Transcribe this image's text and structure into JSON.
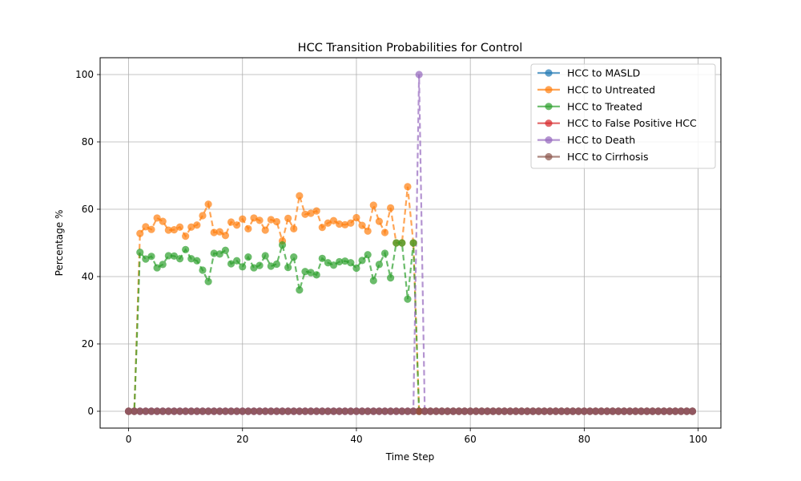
{
  "chart_data": {
    "type": "line",
    "title": "HCC Transition Probabilities for Control",
    "xlabel": "Time Step",
    "ylabel": "Percentage %",
    "xlim": [
      -5,
      104
    ],
    "ylim": [
      -5,
      105
    ],
    "xticks": [
      0,
      20,
      40,
      60,
      80,
      100
    ],
    "yticks": [
      0,
      20,
      40,
      60,
      80,
      100
    ],
    "grid": true,
    "legend_position": "top-right",
    "x": [
      0,
      1,
      2,
      3,
      4,
      5,
      6,
      7,
      8,
      9,
      10,
      11,
      12,
      13,
      14,
      15,
      16,
      17,
      18,
      19,
      20,
      21,
      22,
      23,
      24,
      25,
      26,
      27,
      28,
      29,
      30,
      31,
      32,
      33,
      34,
      35,
      36,
      37,
      38,
      39,
      40,
      41,
      42,
      43,
      44,
      45,
      46,
      47,
      48,
      49,
      50,
      51,
      52,
      53,
      54,
      55,
      56,
      57,
      58,
      59,
      60,
      61,
      62,
      63,
      64,
      65,
      66,
      67,
      68,
      69,
      70,
      71,
      72,
      73,
      74,
      75,
      76,
      77,
      78,
      79,
      80,
      81,
      82,
      83,
      84,
      85,
      86,
      87,
      88,
      89,
      90,
      91,
      92,
      93,
      94,
      95,
      96,
      97,
      98,
      99
    ],
    "series": [
      {
        "name": "HCC to MASLD",
        "color": "#1f77b4",
        "values": [
          0,
          0,
          0,
          0,
          0,
          0,
          0,
          0,
          0,
          0,
          0,
          0,
          0,
          0,
          0,
          0,
          0,
          0,
          0,
          0,
          0,
          0,
          0,
          0,
          0,
          0,
          0,
          0,
          0,
          0,
          0,
          0,
          0,
          0,
          0,
          0,
          0,
          0,
          0,
          0,
          0,
          0,
          0,
          0,
          0,
          0,
          0,
          0,
          0,
          0,
          0,
          0,
          0,
          0,
          0,
          0,
          0,
          0,
          0,
          0,
          0,
          0,
          0,
          0,
          0,
          0,
          0,
          0,
          0,
          0,
          0,
          0,
          0,
          0,
          0,
          0,
          0,
          0,
          0,
          0,
          0,
          0,
          0,
          0,
          0,
          0,
          0,
          0,
          0,
          0,
          0,
          0,
          0,
          0,
          0,
          0,
          0,
          0,
          0,
          0
        ]
      },
      {
        "name": "HCC to Untreated",
        "color": "#ff7f0e",
        "values": [
          0,
          0,
          52.8,
          54.8,
          54.0,
          57.4,
          56.4,
          53.8,
          53.9,
          54.7,
          52.0,
          54.7,
          55.3,
          58.1,
          61.5,
          53.1,
          53.3,
          52.2,
          56.2,
          55.3,
          57.1,
          54.2,
          57.4,
          56.7,
          53.8,
          56.9,
          56.3,
          50.6,
          57.3,
          54.2,
          64.0,
          58.5,
          58.8,
          59.5,
          54.6,
          55.9,
          56.6,
          55.6,
          55.4,
          55.9,
          57.5,
          55.2,
          53.5,
          61.2,
          56.4,
          53.1,
          60.4,
          50.0,
          50.0,
          66.7,
          50.0,
          0,
          0,
          0,
          0,
          0,
          0,
          0,
          0,
          0,
          0,
          0,
          0,
          0,
          0,
          0,
          0,
          0,
          0,
          0,
          0,
          0,
          0,
          0,
          0,
          0,
          0,
          0,
          0,
          0,
          0,
          0,
          0,
          0,
          0,
          0,
          0,
          0,
          0,
          0,
          0,
          0,
          0,
          0,
          0,
          0,
          0,
          0,
          0,
          0
        ]
      },
      {
        "name": "HCC to Treated",
        "color": "#2ca02c",
        "values": [
          0,
          0,
          47.2,
          45.2,
          46.0,
          42.6,
          43.6,
          46.2,
          46.1,
          45.3,
          48.0,
          45.3,
          44.7,
          41.9,
          38.5,
          46.9,
          46.7,
          47.8,
          43.8,
          44.7,
          42.9,
          45.8,
          42.6,
          43.3,
          46.2,
          43.1,
          43.7,
          49.4,
          42.7,
          45.8,
          36.0,
          41.5,
          41.2,
          40.5,
          45.4,
          44.1,
          43.4,
          44.4,
          44.6,
          44.1,
          42.5,
          44.8,
          46.5,
          38.8,
          43.6,
          46.9,
          39.6,
          50.0,
          50.0,
          33.3,
          50.0,
          0,
          0,
          0,
          0,
          0,
          0,
          0,
          0,
          0,
          0,
          0,
          0,
          0,
          0,
          0,
          0,
          0,
          0,
          0,
          0,
          0,
          0,
          0,
          0,
          0,
          0,
          0,
          0,
          0,
          0,
          0,
          0,
          0,
          0,
          0,
          0,
          0,
          0,
          0,
          0,
          0,
          0,
          0,
          0,
          0,
          0,
          0,
          0,
          0
        ]
      },
      {
        "name": "HCC to False Positive HCC",
        "color": "#d62728",
        "values": [
          0,
          0,
          0,
          0,
          0,
          0,
          0,
          0,
          0,
          0,
          0,
          0,
          0,
          0,
          0,
          0,
          0,
          0,
          0,
          0,
          0,
          0,
          0,
          0,
          0,
          0,
          0,
          0,
          0,
          0,
          0,
          0,
          0,
          0,
          0,
          0,
          0,
          0,
          0,
          0,
          0,
          0,
          0,
          0,
          0,
          0,
          0,
          0,
          0,
          0,
          0,
          0,
          0,
          0,
          0,
          0,
          0,
          0,
          0,
          0,
          0,
          0,
          0,
          0,
          0,
          0,
          0,
          0,
          0,
          0,
          0,
          0,
          0,
          0,
          0,
          0,
          0,
          0,
          0,
          0,
          0,
          0,
          0,
          0,
          0,
          0,
          0,
          0,
          0,
          0,
          0,
          0,
          0,
          0,
          0,
          0,
          0,
          0,
          0,
          0
        ]
      },
      {
        "name": "HCC to Death",
        "color": "#9467bd",
        "values": [
          0,
          0,
          0,
          0,
          0,
          0,
          0,
          0,
          0,
          0,
          0,
          0,
          0,
          0,
          0,
          0,
          0,
          0,
          0,
          0,
          0,
          0,
          0,
          0,
          0,
          0,
          0,
          0,
          0,
          0,
          0,
          0,
          0,
          0,
          0,
          0,
          0,
          0,
          0,
          0,
          0,
          0,
          0,
          0,
          0,
          0,
          0,
          0,
          0,
          0,
          0,
          100,
          0,
          0,
          0,
          0,
          0,
          0,
          0,
          0,
          0,
          0,
          0,
          0,
          0,
          0,
          0,
          0,
          0,
          0,
          0,
          0,
          0,
          0,
          0,
          0,
          0,
          0,
          0,
          0,
          0,
          0,
          0,
          0,
          0,
          0,
          0,
          0,
          0,
          0,
          0,
          0,
          0,
          0,
          0,
          0,
          0,
          0,
          0,
          0
        ]
      },
      {
        "name": "HCC to Cirrhosis",
        "color": "#8c564b",
        "values": [
          0,
          0,
          0,
          0,
          0,
          0,
          0,
          0,
          0,
          0,
          0,
          0,
          0,
          0,
          0,
          0,
          0,
          0,
          0,
          0,
          0,
          0,
          0,
          0,
          0,
          0,
          0,
          0,
          0,
          0,
          0,
          0,
          0,
          0,
          0,
          0,
          0,
          0,
          0,
          0,
          0,
          0,
          0,
          0,
          0,
          0,
          0,
          0,
          0,
          0,
          0,
          0,
          0,
          0,
          0,
          0,
          0,
          0,
          0,
          0,
          0,
          0,
          0,
          0,
          0,
          0,
          0,
          0,
          0,
          0,
          0,
          0,
          0,
          0,
          0,
          0,
          0,
          0,
          0,
          0,
          0,
          0,
          0,
          0,
          0,
          0,
          0,
          0,
          0,
          0,
          0,
          0,
          0,
          0,
          0,
          0,
          0,
          0,
          0,
          0
        ]
      }
    ]
  }
}
